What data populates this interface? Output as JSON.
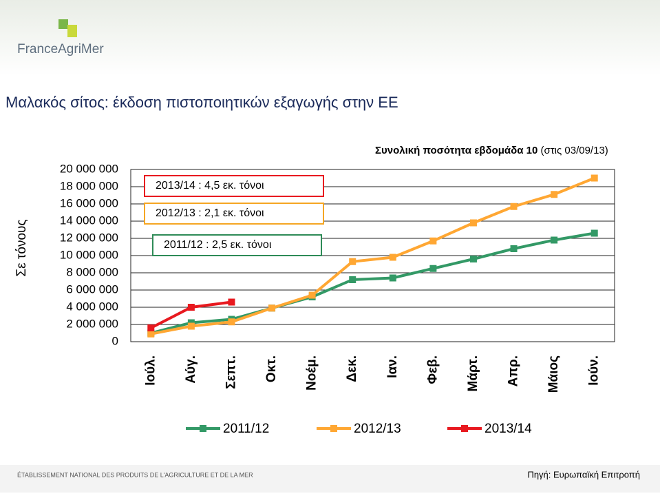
{
  "header": {
    "logo": "FranceAgriMer"
  },
  "footer": {
    "institution": "ÉTABLISSEMENT NATIONAL DES PRODUITS DE L'AGRICULTURE ET DE LA MER",
    "source": "Πηγή: Ευρωπαϊκή Επιτροπή"
  },
  "chart_data": {
    "type": "line",
    "title": "Μαλακός σίτος: έκδοση πιστοποιητικών εξαγωγής στην ΕΕ",
    "y_label": "Σε τόνους",
    "annotation": "Συνολική ποσότητα εβδομάδα 10",
    "annotation_note": "(στις 03/09/13)",
    "boxes": [
      {
        "text": "2013/14 : 4,5 εκ. τόνοι",
        "color": "#e8191f"
      },
      {
        "text": "2012/13 : 2,1 εκ. τόνοι",
        "color": "#f5a623"
      },
      {
        "text": "2011/12 : 2,5 εκ. τόνοι",
        "color": "#2e8b57"
      }
    ],
    "categories": [
      "Ιούλ.",
      "Αύγ.",
      "Σεπτ.",
      "Οκτ.",
      "Νοέμ.",
      "Δεκ.",
      "Ιαν.",
      "Φεβ.",
      "Μάρτ.",
      "Απρ.",
      "Μάιος",
      "Ιούν."
    ],
    "series": [
      {
        "name": "2011/12",
        "color": "#339966",
        "values": [
          1000000,
          2200000,
          2600000,
          3900000,
          5200000,
          7200000,
          7400000,
          8500000,
          9600000,
          10800000,
          11800000,
          12600000
        ]
      },
      {
        "name": "2012/13",
        "color": "#ffa733",
        "values": [
          900000,
          1800000,
          2300000,
          3900000,
          5400000,
          9300000,
          9800000,
          11700000,
          13800000,
          15700000,
          17100000,
          19000000
        ]
      },
      {
        "name": "2013/14",
        "color": "#e8191f",
        "values": [
          1600000,
          4000000,
          4600000,
          null,
          null,
          null,
          null,
          null,
          null,
          null,
          null,
          null
        ]
      }
    ],
    "ylim": [
      0,
      20000000
    ],
    "yticks": [
      0,
      {
        "value": 2000000,
        "label": "2 000 000"
      },
      {
        "value": 4000000,
        "label": "4 000 000"
      },
      {
        "value": 6000000,
        "label": "6 000 000"
      },
      {
        "value": 8000000,
        "label": "8 000 000"
      },
      {
        "value": 10000000,
        "label": "10 000 000"
      },
      {
        "value": 12000000,
        "label": "12 000 000"
      },
      {
        "value": 14000000,
        "label": "14 000 000"
      },
      {
        "value": 16000000,
        "label": "16 000 000"
      },
      {
        "value": 18000000,
        "label": "18 000 000"
      },
      {
        "value": 20000000,
        "label": "20 000 000"
      }
    ],
    "grid": true
  }
}
